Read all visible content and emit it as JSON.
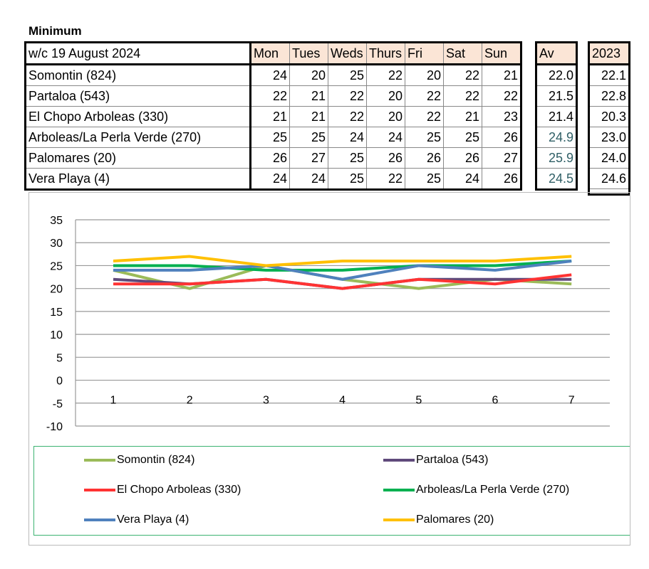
{
  "title": "Minimum",
  "header": {
    "label": "w/c  19 August 2024",
    "days": [
      "Mon",
      "Tues",
      "Weds",
      "Thurs",
      "Fri",
      "Sat",
      "Sun"
    ],
    "av": "Av",
    "prev": "2023"
  },
  "rows": [
    {
      "name": "Somontin (824)",
      "values": [
        24,
        20,
        25,
        22,
        20,
        22,
        21
      ],
      "av": "22.0",
      "prev": "22.1",
      "color": "#9bbb59"
    },
    {
      "name": "Partaloa (543)",
      "values": [
        22,
        21,
        22,
        20,
        22,
        22,
        22
      ],
      "av": "21.5",
      "prev": "22.8",
      "color": "#604a7b"
    },
    {
      "name": "El Chopo Arboleas (330)",
      "values": [
        21,
        21,
        22,
        20,
        22,
        21,
        23
      ],
      "av": "21.4",
      "prev": "20.3",
      "color": "#ff3333"
    },
    {
      "name": "Arboleas/La Perla Verde (270)",
      "values": [
        25,
        25,
        24,
        24,
        25,
        25,
        26
      ],
      "av": "24.9",
      "prev": "23.0",
      "color": "#00b050"
    },
    {
      "name": "Palomares (20)",
      "values": [
        26,
        27,
        25,
        26,
        26,
        26,
        27
      ],
      "av": "25.9",
      "prev": "24.0",
      "color": "#ffc000"
    },
    {
      "name": "Vera Playa (4)",
      "values": [
        24,
        24,
        25,
        22,
        25,
        24,
        26
      ],
      "av": "24.5",
      "prev": "24.6",
      "color": "#4f81bd"
    }
  ],
  "chart_data": {
    "type": "line",
    "x": [
      1,
      2,
      3,
      4,
      5,
      6,
      7
    ],
    "ylim": [
      -10,
      35
    ],
    "yticks": [
      35,
      30,
      25,
      20,
      15,
      10,
      5,
      0,
      -5,
      -10
    ],
    "grid": true,
    "legend": "bottom",
    "series": [
      {
        "name": "Somontin (824)",
        "values": [
          24,
          20,
          25,
          22,
          20,
          22,
          21
        ],
        "color": "#9bbb59"
      },
      {
        "name": "Partaloa (543)",
        "values": [
          22,
          21,
          22,
          20,
          22,
          22,
          22
        ],
        "color": "#604a7b"
      },
      {
        "name": "El Chopo Arboleas (330)",
        "values": [
          21,
          21,
          22,
          20,
          22,
          21,
          23
        ],
        "color": "#ff3333"
      },
      {
        "name": "Arboleas/La Perla Verde (270)",
        "values": [
          25,
          25,
          24,
          24,
          25,
          25,
          26
        ],
        "color": "#00b050"
      },
      {
        "name": "Vera Playa (4)",
        "values": [
          24,
          24,
          25,
          22,
          25,
          24,
          26
        ],
        "color": "#4f81bd"
      },
      {
        "name": "Palomares (20)",
        "values": [
          26,
          27,
          25,
          26,
          26,
          26,
          27
        ],
        "color": "#ffc000"
      }
    ]
  }
}
